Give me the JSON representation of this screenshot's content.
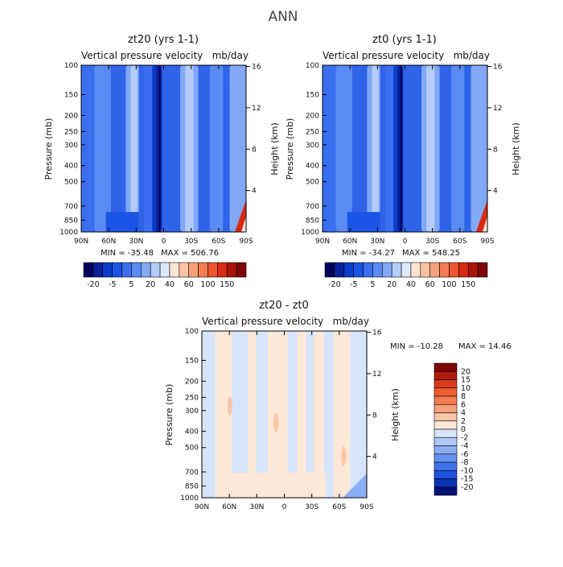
{
  "figure": {
    "title": "ANN"
  },
  "chart_data": [
    {
      "type": "heatmap",
      "title": "zt20 (yrs 1-1)",
      "subtitle_left": "Vertical pressure velocity",
      "subtitle_right": "mb/day",
      "ylabel": "Pressure (mb)",
      "y2label": "Height (km)",
      "x_ticks": [
        "90N",
        "60N",
        "30N",
        "0",
        "30S",
        "60S",
        "90S"
      ],
      "y_ticks": [
        "100",
        "150",
        "200",
        "250",
        "300",
        "400",
        "500",
        "700",
        "850",
        "1000"
      ],
      "y2_ticks": [
        "16",
        "12",
        "8",
        "4"
      ],
      "min_label": "MIN = -35.48",
      "max_label": "MAX = 506.76",
      "colorbar_labels": [
        "-20",
        "-5",
        "5",
        "20",
        "40",
        "60",
        "100",
        "150"
      ],
      "colorbar_colors": [
        "#03035e",
        "#06209a",
        "#0a3ccc",
        "#1b55e6",
        "#3a6fef",
        "#5a8af3",
        "#82a8f6",
        "#b5ccf9",
        "#dde8fc",
        "#fde3d3",
        "#fac3a2",
        "#f8a17a",
        "#f57c53",
        "#ee5530",
        "#d82b14",
        "#ab1408",
        "#7e0505"
      ]
    },
    {
      "type": "heatmap",
      "title": "zt0 (yrs 1-1)",
      "subtitle_left": "Vertical pressure velocity",
      "subtitle_right": "mb/day",
      "ylabel": "Pressure (mb)",
      "y2label": "Height (km)",
      "x_ticks": [
        "90N",
        "60N",
        "30N",
        "0",
        "30S",
        "60S",
        "90S"
      ],
      "y_ticks": [
        "100",
        "150",
        "200",
        "250",
        "300",
        "400",
        "500",
        "700",
        "850",
        "1000"
      ],
      "y2_ticks": [
        "16",
        "12",
        "8",
        "4"
      ],
      "min_label": "MIN = -34.27",
      "max_label": "MAX = 548.25",
      "colorbar_labels": [
        "-20",
        "-5",
        "5",
        "20",
        "40",
        "60",
        "100",
        "150"
      ],
      "colorbar_colors": [
        "#03035e",
        "#06209a",
        "#0a3ccc",
        "#1b55e6",
        "#3a6fef",
        "#5a8af3",
        "#82a8f6",
        "#b5ccf9",
        "#dde8fc",
        "#fde3d3",
        "#fac3a2",
        "#f8a17a",
        "#f57c53",
        "#ee5530",
        "#d82b14",
        "#ab1408",
        "#7e0505"
      ]
    },
    {
      "type": "heatmap",
      "title": "zt20 - zt0",
      "subtitle_left": "Vertical pressure velocity",
      "subtitle_right": "mb/day",
      "ylabel": "Pressure (mb)",
      "y2label": "Height (km)",
      "x_ticks": [
        "90N",
        "60N",
        "30N",
        "0",
        "30S",
        "60S",
        "90S"
      ],
      "y_ticks": [
        "100",
        "150",
        "200",
        "250",
        "300",
        "400",
        "500",
        "700",
        "850",
        "1000"
      ],
      "y2_ticks": [
        "16",
        "12",
        "8",
        "4"
      ],
      "min_label": "MIN = -10.28",
      "max_label": "MAX =  14.46",
      "colorbar_labels": [
        "20",
        "15",
        "10",
        "8",
        "6",
        "4",
        "2",
        "0",
        "-2",
        "-4",
        "-6",
        "-8",
        "-10",
        "-15",
        "-20"
      ],
      "colorbar_colors": [
        "#7e0505",
        "#b01a0c",
        "#d83a1a",
        "#ef5a2e",
        "#f57c53",
        "#f8a17a",
        "#fbc6a7",
        "#fde8d8",
        "#d6e5fb",
        "#b0c9f7",
        "#8aaef4",
        "#6592f0",
        "#3f73eb",
        "#1f52de",
        "#0c31b3",
        "#04127a"
      ]
    }
  ]
}
